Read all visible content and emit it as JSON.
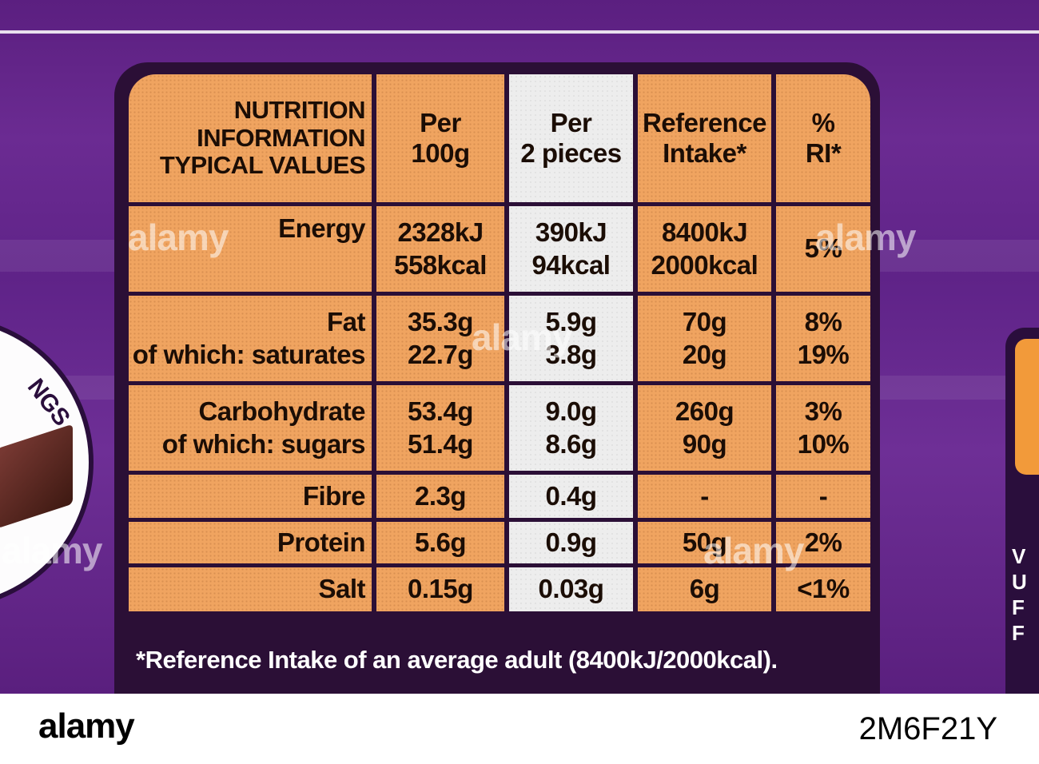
{
  "nutrition": {
    "header": {
      "label": [
        "NUTRITION",
        "INFORMATION",
        "TYPICAL VALUES"
      ],
      "per100": [
        "Per",
        "100g"
      ],
      "per2": [
        "Per",
        "2 pieces"
      ],
      "ri": [
        "Reference",
        "Intake*"
      ],
      "pct": [
        "%",
        "RI*"
      ]
    },
    "rows": [
      {
        "label": [
          "Energy"
        ],
        "per100": [
          "2328kJ",
          "558kcal"
        ],
        "per2": [
          "390kJ",
          "94kcal"
        ],
        "ri": [
          "8400kJ",
          "2000kcal"
        ],
        "pct": [
          "5%"
        ]
      },
      {
        "label": [
          "Fat",
          "of which: saturates"
        ],
        "per100": [
          "35.3g",
          "22.7g"
        ],
        "per2": [
          "5.9g",
          "3.8g"
        ],
        "ri": [
          "70g",
          "20g"
        ],
        "pct": [
          "8%",
          "19%"
        ]
      },
      {
        "label": [
          "Carbohydrate",
          "of which: sugars"
        ],
        "per100": [
          "53.4g",
          "51.4g"
        ],
        "per2": [
          "9.0g",
          "8.6g"
        ],
        "ri": [
          "260g",
          "90g"
        ],
        "pct": [
          "3%",
          "10%"
        ]
      },
      {
        "label": [
          "Fibre"
        ],
        "per100": [
          "2.3g"
        ],
        "per2": [
          "0.4g"
        ],
        "ri": [
          "-"
        ],
        "pct": [
          "-"
        ]
      },
      {
        "label": [
          "Protein"
        ],
        "per100": [
          "5.6g"
        ],
        "per2": [
          "0.9g"
        ],
        "ri": [
          "50g"
        ],
        "pct": [
          "2%"
        ]
      },
      {
        "label": [
          "Salt"
        ],
        "per100": [
          "0.15g"
        ],
        "per2": [
          "0.03g"
        ],
        "ri": [
          "6g"
        ],
        "pct": [
          "<1%"
        ]
      }
    ],
    "footnote": "*Reference Intake of an average adult (8400kJ/2000kcal)."
  },
  "packaging": {
    "badge_left_text": "NGS",
    "badge_right_letters": [
      "V",
      "U",
      "F",
      "F"
    ]
  },
  "watermark": {
    "text": "alamy",
    "footer_logo": "alamy",
    "image_id": "2M6F21Y"
  },
  "colors": {
    "pack_purple": "#6a2a90",
    "panel_dark": "#2b0f36",
    "cell_orange": "#f0a460",
    "cell_highlight": "#ededed",
    "text_dark": "#1b0d05"
  }
}
